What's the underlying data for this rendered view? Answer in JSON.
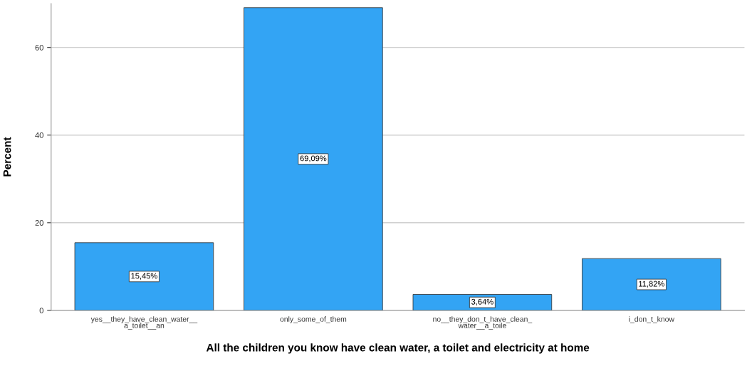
{
  "chart_data": {
    "type": "bar",
    "xlabel": "All the children you know have clean water, a toilet and electricity at home",
    "ylabel": "Percent",
    "categories": [
      "yes__they_have_clean_water__\na_toilet__an",
      "only_some_of_them",
      "no__they_don_t_have_clean_\nwater__a_toile",
      "i_don_t_know"
    ],
    "values": [
      15.45,
      69.09,
      3.64,
      11.82
    ],
    "value_labels": [
      "15,45%",
      "69,09%",
      "3,64%",
      "11,82%"
    ],
    "color": "#33a4f4",
    "ylim": [
      0,
      70
    ],
    "yticks": [
      0,
      20,
      40,
      60
    ],
    "grid": "y"
  }
}
